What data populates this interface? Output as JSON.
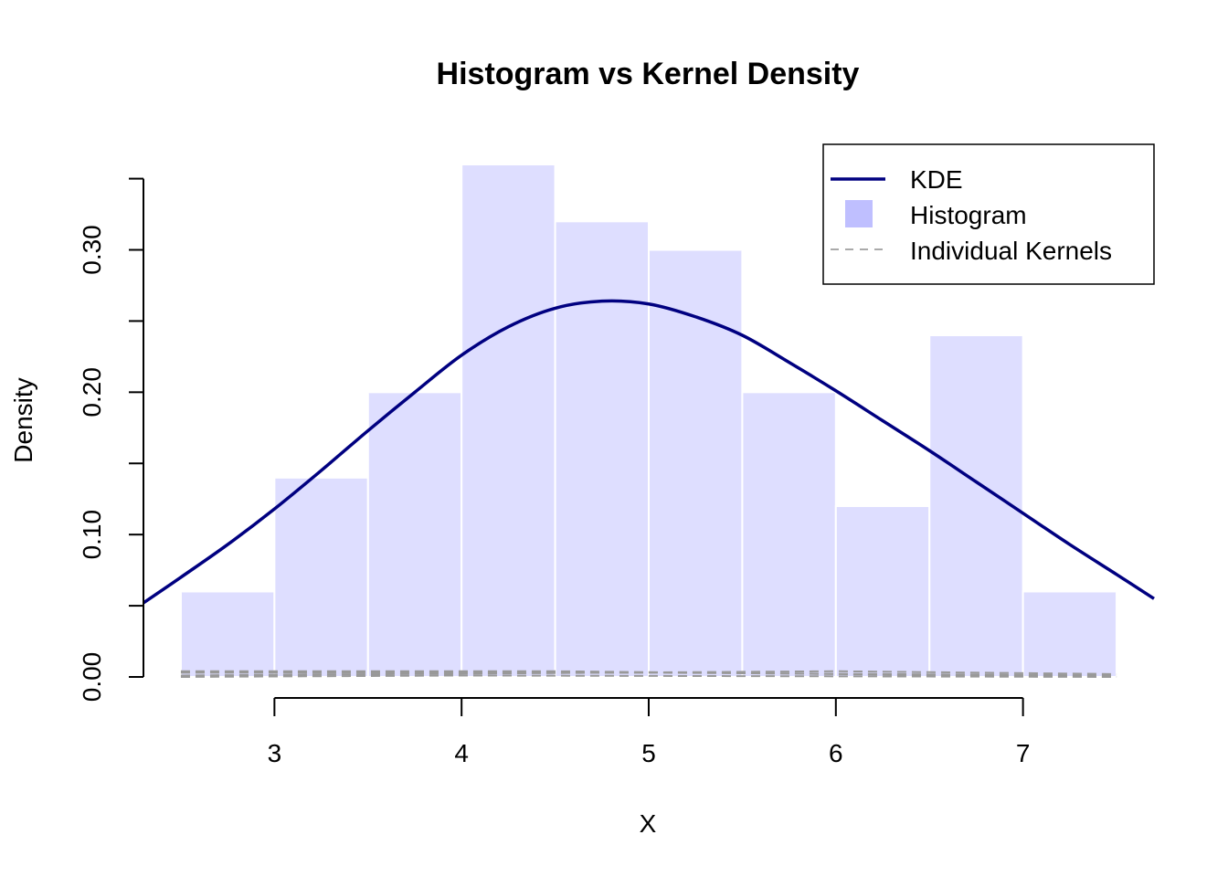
{
  "chart_data": {
    "type": "bar",
    "title": "Histogram vs Kernel Density",
    "xlabel": "X",
    "ylabel": "Density",
    "xlim": [
      2.3,
      7.7
    ],
    "ylim": [
      0,
      0.36
    ],
    "x_ticks": [
      "3",
      "4",
      "5",
      "6",
      "7"
    ],
    "y_ticks": [
      "0.00",
      "0.10",
      "0.20",
      "0.30"
    ],
    "histogram": {
      "name": "Histogram",
      "bin_edges": [
        2.5,
        3.0,
        3.5,
        4.0,
        4.5,
        5.0,
        5.5,
        6.0,
        6.5,
        7.0,
        7.5
      ],
      "densities": [
        0.06,
        0.14,
        0.2,
        0.36,
        0.32,
        0.3,
        0.2,
        0.12,
        0.24,
        0.06
      ],
      "color": "#dedeff"
    },
    "kde": {
      "name": "KDE",
      "color": "#000080",
      "x": [
        2.3,
        2.5,
        2.75,
        3.0,
        3.25,
        3.5,
        3.75,
        4.0,
        4.25,
        4.5,
        4.75,
        5.0,
        5.25,
        5.5,
        5.75,
        6.0,
        6.25,
        6.5,
        6.75,
        7.0,
        7.25,
        7.5,
        7.7
      ],
      "y": [
        0.052,
        0.07,
        0.093,
        0.118,
        0.145,
        0.173,
        0.2,
        0.226,
        0.246,
        0.259,
        0.264,
        0.262,
        0.253,
        0.24,
        0.221,
        0.201,
        0.18,
        0.159,
        0.137,
        0.115,
        0.093,
        0.072,
        0.055
      ]
    },
    "kernels": {
      "name": "Individual Kernels",
      "color": "#999999",
      "lines": [
        {
          "x": [
            2.5,
            4.5,
            7.5
          ],
          "y": [
            0.004,
            0.004,
            0.0
          ]
        },
        {
          "x": [
            2.5,
            5.0,
            7.5
          ],
          "y": [
            0.003,
            0.003,
            0.001
          ]
        },
        {
          "x": [
            2.5,
            6.0,
            7.5
          ],
          "y": [
            0.001,
            0.004,
            0.002
          ]
        },
        {
          "x": [
            2.5,
            4.0,
            7.5
          ],
          "y": [
            0.0,
            0.001,
            0.0
          ]
        }
      ]
    },
    "legend": {
      "position": "top-right",
      "entries": [
        "KDE",
        "Histogram",
        "Individual Kernels"
      ],
      "histogram_swatch_color": "#bfbfff"
    }
  }
}
